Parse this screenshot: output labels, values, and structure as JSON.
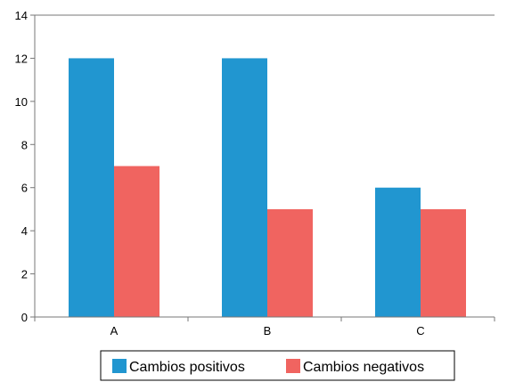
{
  "chart_data": {
    "type": "bar",
    "categories": [
      "A",
      "B",
      "C"
    ],
    "series": [
      {
        "name": "Cambios positivos",
        "values": [
          12,
          12,
          6
        ],
        "color": "#2196d0"
      },
      {
        "name": "Cambios negativos",
        "values": [
          7,
          5,
          5
        ],
        "color": "#f06460"
      }
    ],
    "ylim": [
      0,
      14
    ],
    "yticks": [
      0,
      2,
      4,
      6,
      8,
      10,
      12,
      14
    ],
    "grid": false,
    "legend_position": "bottom"
  }
}
